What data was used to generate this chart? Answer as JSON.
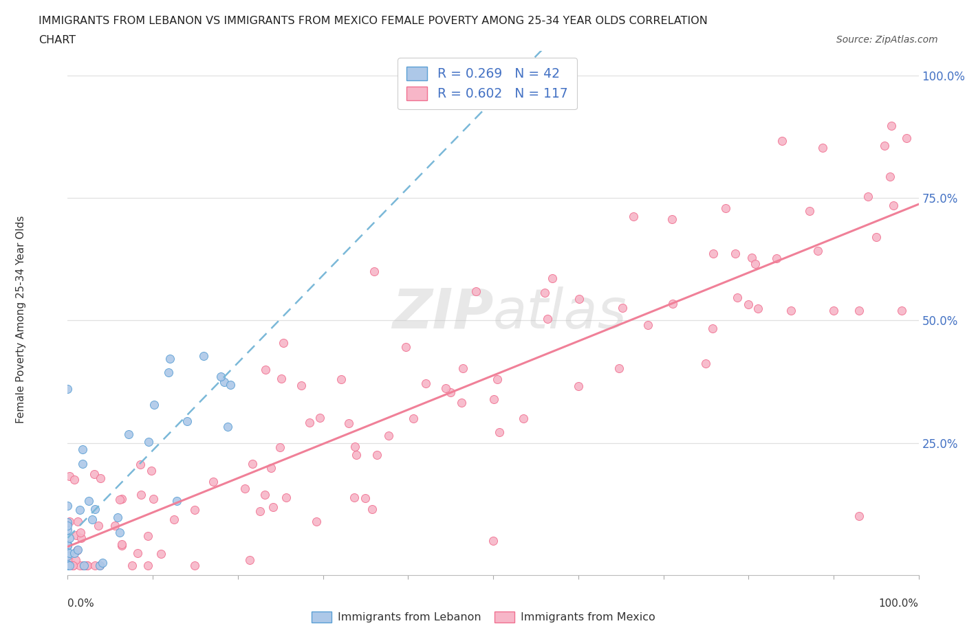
{
  "title_line1": "IMMIGRANTS FROM LEBANON VS IMMIGRANTS FROM MEXICO FEMALE POVERTY AMONG 25-34 YEAR OLDS CORRELATION",
  "title_line2": "CHART",
  "source": "Source: ZipAtlas.com",
  "ylabel": "Female Poverty Among 25-34 Year Olds",
  "lebanon_color": "#adc8e8",
  "mexico_color": "#f7b6c8",
  "lebanon_edge": "#5a9fd4",
  "mexico_edge": "#f07090",
  "lebanon_R": 0.269,
  "lebanon_N": 42,
  "mexico_R": 0.602,
  "mexico_N": 117,
  "background_color": "#ffffff",
  "grid_color": "#e0e0e0",
  "line_lebanon_color": "#7ab8d8",
  "line_mexico_color": "#f08098"
}
